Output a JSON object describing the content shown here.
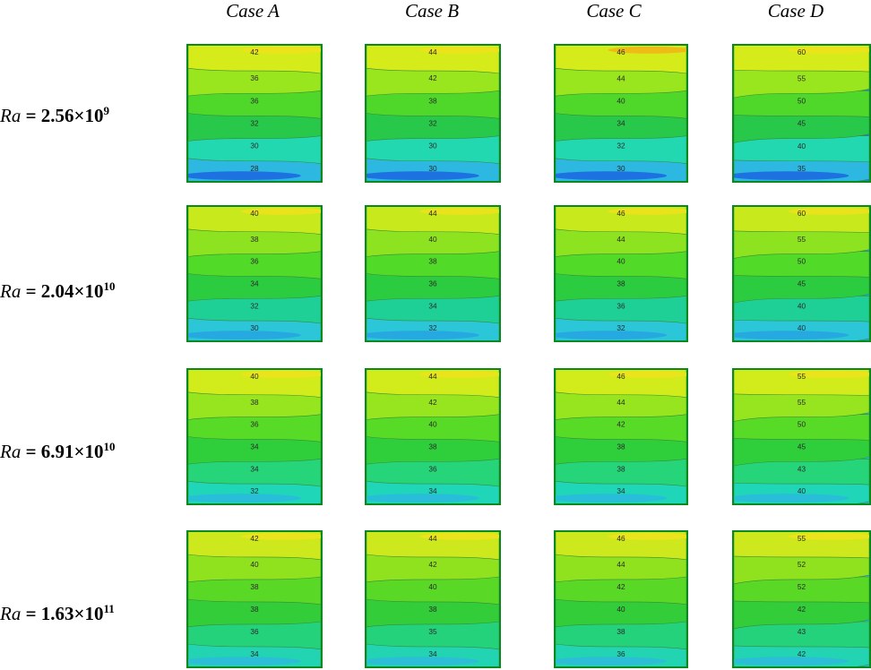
{
  "columns": [
    "Case A",
    "Case B",
    "Case C",
    "Case D"
  ],
  "rows": [
    {
      "ra": "Ra",
      "eq": " = ",
      "mant": "2.56×10",
      "exp": "9"
    },
    {
      "ra": "Ra",
      "eq": " = ",
      "mant": "2.04×10",
      "exp": "10"
    },
    {
      "ra": "Ra",
      "eq": " = ",
      "mant": "6.91×10",
      "exp": "10"
    },
    {
      "ra": "Ra",
      "eq": " = ",
      "mant": "1.63×10",
      "exp": "11"
    }
  ],
  "panels": [
    [
      {
        "labels": [
          "42",
          "36",
          "36",
          "32",
          "30",
          "28"
        ]
      },
      {
        "labels": [
          "44",
          "42",
          "38",
          "32",
          "30",
          "30"
        ]
      },
      {
        "labels": [
          "46",
          "44",
          "40",
          "34",
          "32",
          "30"
        ]
      },
      {
        "labels": [
          "60",
          "55",
          "50",
          "45",
          "40",
          "35"
        ]
      }
    ],
    [
      {
        "labels": [
          "40",
          "38",
          "36",
          "34",
          "32",
          "30"
        ]
      },
      {
        "labels": [
          "44",
          "40",
          "38",
          "36",
          "34",
          "32"
        ]
      },
      {
        "labels": [
          "46",
          "44",
          "40",
          "38",
          "36",
          "32"
        ]
      },
      {
        "labels": [
          "60",
          "55",
          "50",
          "45",
          "40",
          "40"
        ]
      }
    ],
    [
      {
        "labels": [
          "40",
          "38",
          "36",
          "34",
          "34",
          "32"
        ]
      },
      {
        "labels": [
          "44",
          "42",
          "40",
          "38",
          "36",
          "34"
        ]
      },
      {
        "labels": [
          "46",
          "44",
          "42",
          "38",
          "38",
          "34"
        ]
      },
      {
        "labels": [
          "55",
          "55",
          "50",
          "45",
          "43",
          "40"
        ]
      }
    ],
    [
      {
        "labels": [
          "42",
          "40",
          "38",
          "38",
          "36",
          "34"
        ]
      },
      {
        "labels": [
          "44",
          "42",
          "40",
          "38",
          "35",
          "34"
        ]
      },
      {
        "labels": [
          "46",
          "44",
          "42",
          "40",
          "38",
          "36"
        ]
      },
      {
        "labels": [
          "55",
          "52",
          "52",
          "42",
          "43",
          "42"
        ]
      }
    ]
  ],
  "band_colors": [
    [
      "#d6ec1a",
      "#9ae61e",
      "#4fd82a",
      "#28c84a",
      "#22d8b0",
      "#2cb8e0",
      "#1f80e8"
    ],
    [
      "#c8ea1c",
      "#8ee320",
      "#52da28",
      "#2ccc40",
      "#1fd096",
      "#2bc6d8",
      "#25a0e4"
    ],
    [
      "#d2ec1b",
      "#96e51f",
      "#58db27",
      "#2fcf3c",
      "#26d47a",
      "#1fd6b8",
      "#2ab6e0"
    ],
    [
      "#cde81c",
      "#90e21f",
      "#5ad826",
      "#33cd3a",
      "#24d27c",
      "#22d4b2",
      "#30b8e0"
    ]
  ]
}
